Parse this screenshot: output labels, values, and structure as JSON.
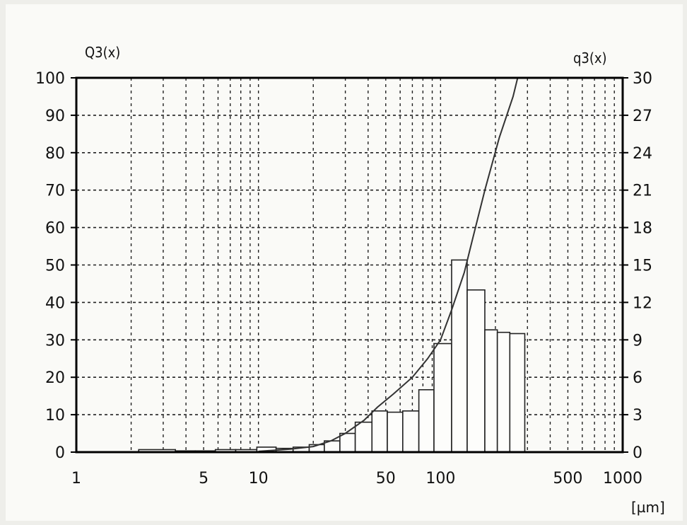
{
  "chart_data": {
    "type": "bar",
    "title": "",
    "x_scale": "log",
    "x_range": [
      1,
      1000
    ],
    "x_ticks": [
      1,
      5,
      10,
      50,
      100,
      500,
      1000
    ],
    "x_tick_labels": [
      "1",
      "5",
      "10",
      "50",
      "100",
      "500",
      "1000"
    ],
    "x_unit": "[µm]",
    "grid": "dashed, log decades",
    "left_axis": {
      "label": "Q3(x)",
      "range": [
        0,
        100
      ],
      "ticks": [
        0,
        10,
        20,
        30,
        40,
        50,
        60,
        70,
        80,
        90,
        100
      ]
    },
    "right_axis": {
      "label": "q3(x)",
      "range": [
        0,
        30
      ],
      "ticks": [
        0,
        3,
        6,
        9,
        12,
        15,
        18,
        21,
        24,
        27,
        30
      ]
    },
    "series": [
      {
        "kind": "histogram",
        "axis": "right",
        "bins": [
          {
            "x0": 2.2,
            "x1": 3.5,
            "y": 0.2
          },
          {
            "x0": 3.5,
            "x1": 4.5,
            "y": 0.1
          },
          {
            "x0": 4.5,
            "x1": 5.8,
            "y": 0.1
          },
          {
            "x0": 5.8,
            "x1": 7.5,
            "y": 0.2
          },
          {
            "x0": 7.5,
            "x1": 9.8,
            "y": 0.2
          },
          {
            "x0": 9.8,
            "x1": 12.5,
            "y": 0.4
          },
          {
            "x0": 12.5,
            "x1": 15.5,
            "y": 0.3
          },
          {
            "x0": 15.5,
            "x1": 19,
            "y": 0.4
          },
          {
            "x0": 19,
            "x1": 23,
            "y": 0.6
          },
          {
            "x0": 23,
            "x1": 28,
            "y": 0.9
          },
          {
            "x0": 28,
            "x1": 34,
            "y": 1.5
          },
          {
            "x0": 34,
            "x1": 42,
            "y": 2.4
          },
          {
            "x0": 42,
            "x1": 51,
            "y": 3.3
          },
          {
            "x0": 51,
            "x1": 62,
            "y": 3.2
          },
          {
            "x0": 62,
            "x1": 76,
            "y": 3.3
          },
          {
            "x0": 76,
            "x1": 92,
            "y": 5.0
          },
          {
            "x0": 92,
            "x1": 115,
            "y": 8.7
          },
          {
            "x0": 115,
            "x1": 140,
            "y": 15.4
          },
          {
            "x0": 140,
            "x1": 175,
            "y": 13.0
          },
          {
            "x0": 175,
            "x1": 205,
            "y": 9.8
          },
          {
            "x0": 205,
            "x1": 240,
            "y": 9.6
          },
          {
            "x0": 240,
            "x1": 290,
            "y": 9.5
          }
        ]
      },
      {
        "kind": "cumulative_line",
        "axis": "left",
        "points": [
          [
            10,
            0.2
          ],
          [
            15,
            0.8
          ],
          [
            20,
            1.5
          ],
          [
            25,
            3
          ],
          [
            30,
            5
          ],
          [
            38,
            8.5
          ],
          [
            45,
            12
          ],
          [
            55,
            15.5
          ],
          [
            70,
            20
          ],
          [
            85,
            25
          ],
          [
            100,
            30
          ],
          [
            115,
            38
          ],
          [
            135,
            48
          ],
          [
            150,
            57
          ],
          [
            175,
            70
          ],
          [
            210,
            84
          ],
          [
            250,
            95
          ],
          [
            265,
            100
          ]
        ]
      }
    ]
  }
}
